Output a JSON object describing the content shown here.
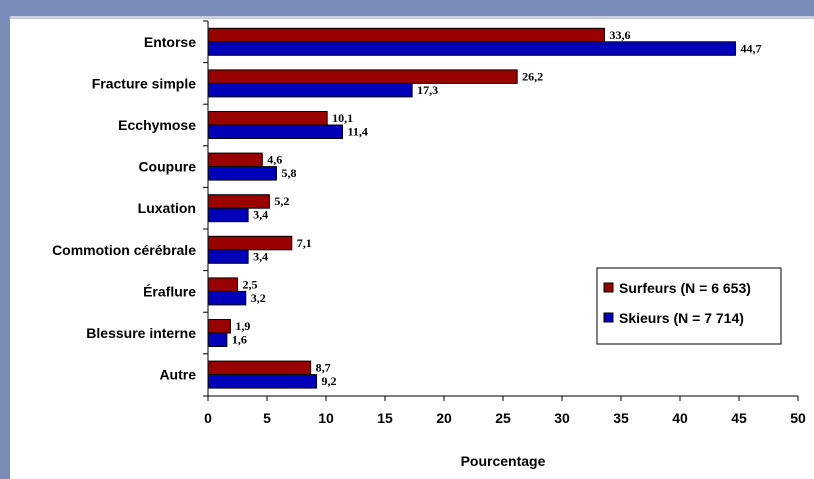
{
  "chart_data": {
    "type": "bar",
    "orientation": "horizontal",
    "categories": [
      "Entorse",
      "Fracture simple",
      "Ecchymose",
      "Coupure",
      "Luxation",
      "Commotion cérébrale",
      "Éraflure",
      "Blessure interne",
      "Autre"
    ],
    "series": [
      {
        "name": "Surfeurs (N = 6 653)",
        "color": "#990000",
        "values": [
          33.6,
          26.2,
          10.1,
          4.6,
          5.2,
          7.1,
          2.5,
          1.9,
          8.7
        ],
        "labels": [
          "33,6",
          "26,2",
          "10,1",
          "4,6",
          "5,2",
          "7,1",
          "2,5",
          "1,9",
          "8,7"
        ]
      },
      {
        "name": "Skieurs (N = 7 714)",
        "color": "#0000b8",
        "values": [
          44.7,
          17.3,
          11.4,
          5.8,
          3.4,
          3.4,
          3.2,
          1.6,
          9.2
        ],
        "labels": [
          "44,7",
          "17,3",
          "11,4",
          "5,8",
          "3,4",
          "3,4",
          "3,2",
          "1,6",
          "9,2"
        ]
      }
    ],
    "xlabel": "Pourcentage",
    "ylabel": "",
    "xlim": [
      0,
      50
    ],
    "xticks": [
      "0",
      "5",
      "10",
      "15",
      "20",
      "25",
      "30",
      "35",
      "40",
      "45",
      "50"
    ],
    "grid": false,
    "legend": "right"
  }
}
